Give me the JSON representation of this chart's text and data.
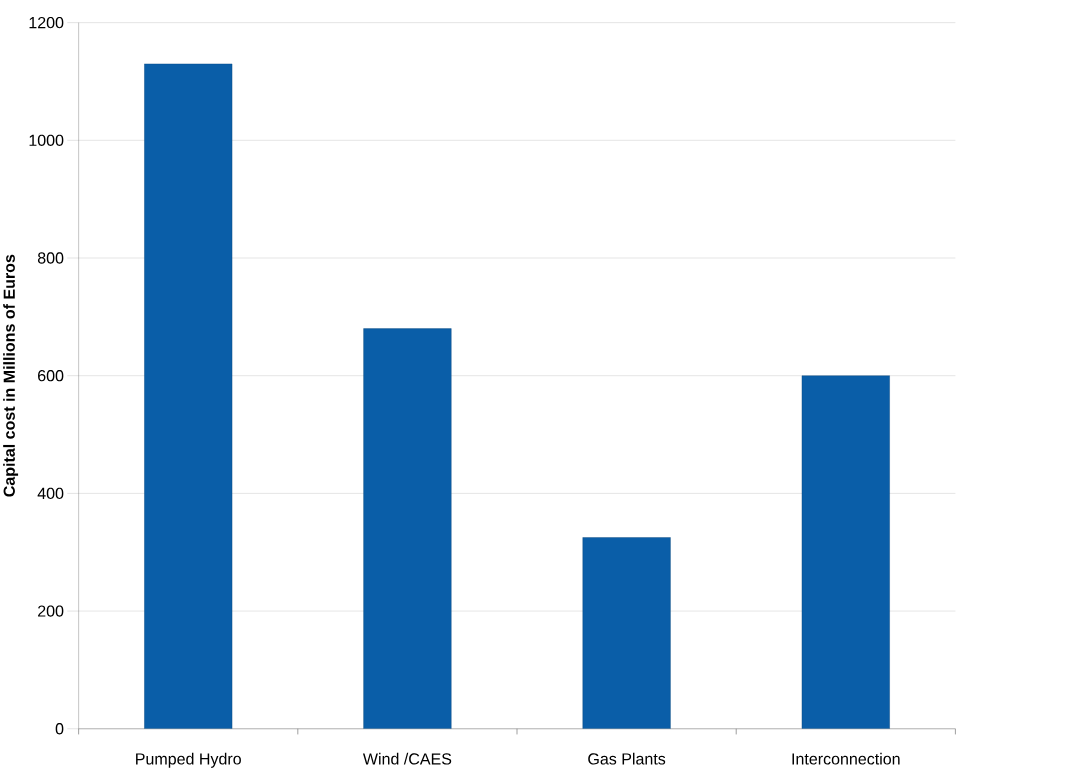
{
  "chart_data": {
    "type": "bar",
    "ylabel": "Capital cost in Millions of Euros",
    "categories": [
      "Pumped Hydro",
      "Wind /CAES",
      "Gas Plants",
      "Interconnection"
    ],
    "values": [
      1130,
      680,
      325,
      600
    ],
    "color": "#0a5ea8",
    "ylim": [
      0,
      1200
    ],
    "yticks": [
      0,
      200,
      400,
      600,
      800,
      1000,
      1200
    ],
    "grid": "y"
  }
}
